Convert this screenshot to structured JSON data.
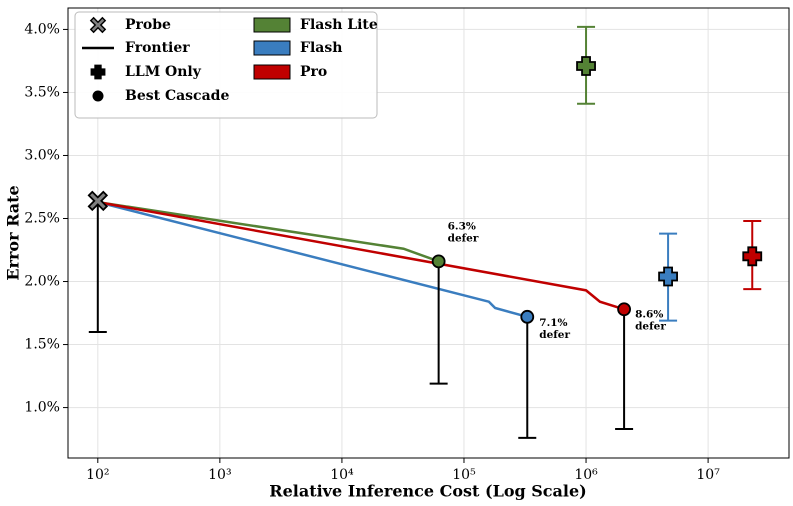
{
  "chart_data": {
    "type": "scatter",
    "x_label": "Relative Inference Cost (Log Scale)",
    "y_label": "Error Rate",
    "xscale": "log",
    "grid": true,
    "legend_position": "upper left",
    "xlim": [
      57,
      46000000
    ],
    "ylim": [
      0.6,
      4.17
    ],
    "xticks": [
      {
        "value": 100,
        "label": "10²"
      },
      {
        "value": 1000,
        "label": "10³"
      },
      {
        "value": 10000,
        "label": "10⁴"
      },
      {
        "value": 100000,
        "label": "10⁵"
      },
      {
        "value": 1000000,
        "label": "10⁶"
      },
      {
        "value": 10000000,
        "label": "10⁷"
      }
    ],
    "yticks": [
      {
        "value": 1.0,
        "label": "1.0%"
      },
      {
        "value": 1.5,
        "label": "1.5%"
      },
      {
        "value": 2.0,
        "label": "2.0%"
      },
      {
        "value": 2.5,
        "label": "2.5%"
      },
      {
        "value": 3.0,
        "label": "3.0%"
      },
      {
        "value": 3.5,
        "label": "3.5%"
      },
      {
        "value": 4.0,
        "label": "4.0%"
      }
    ],
    "legend_markers": [
      "Probe",
      "Frontier",
      "LLM Only",
      "Best Cascade"
    ],
    "probe": {
      "x": 100,
      "y": 2.64,
      "low": 1.6
    },
    "series": [
      {
        "name": "Flash Lite",
        "color": "#548235",
        "frontier": {
          "x": [
            100,
            32000,
            62000
          ],
          "y": [
            2.63,
            2.26,
            2.16
          ]
        },
        "cascade": {
          "x": 62000,
          "y": 2.16,
          "low": 1.19,
          "annotation": [
            "6.3%",
            "defer"
          ]
        },
        "llm_only": {
          "x": 1000000,
          "y": 3.71,
          "low": 3.41,
          "high": 4.02
        }
      },
      {
        "name": "Flash",
        "color": "#3a7dbf",
        "frontier": {
          "x": [
            100,
            160000,
            180000,
            330000
          ],
          "y": [
            2.63,
            1.84,
            1.79,
            1.72
          ]
        },
        "cascade": {
          "x": 330000,
          "y": 1.72,
          "low": 0.76,
          "annotation": [
            "7.1%",
            "defer"
          ]
        },
        "llm_only": {
          "x": 4700000,
          "y": 2.04,
          "low": 1.69,
          "high": 2.38
        }
      },
      {
        "name": "Pro",
        "color": "#c00000",
        "frontier": {
          "x": [
            100,
            1000000,
            1300000,
            2050000
          ],
          "y": [
            2.63,
            1.93,
            1.84,
            1.78
          ]
        },
        "cascade": {
          "x": 2050000,
          "y": 1.78,
          "low": 0.83,
          "annotation": [
            "8.6%",
            "defer"
          ]
        },
        "llm_only": {
          "x": 23000000,
          "y": 2.2,
          "low": 1.94,
          "high": 2.48
        }
      }
    ]
  }
}
